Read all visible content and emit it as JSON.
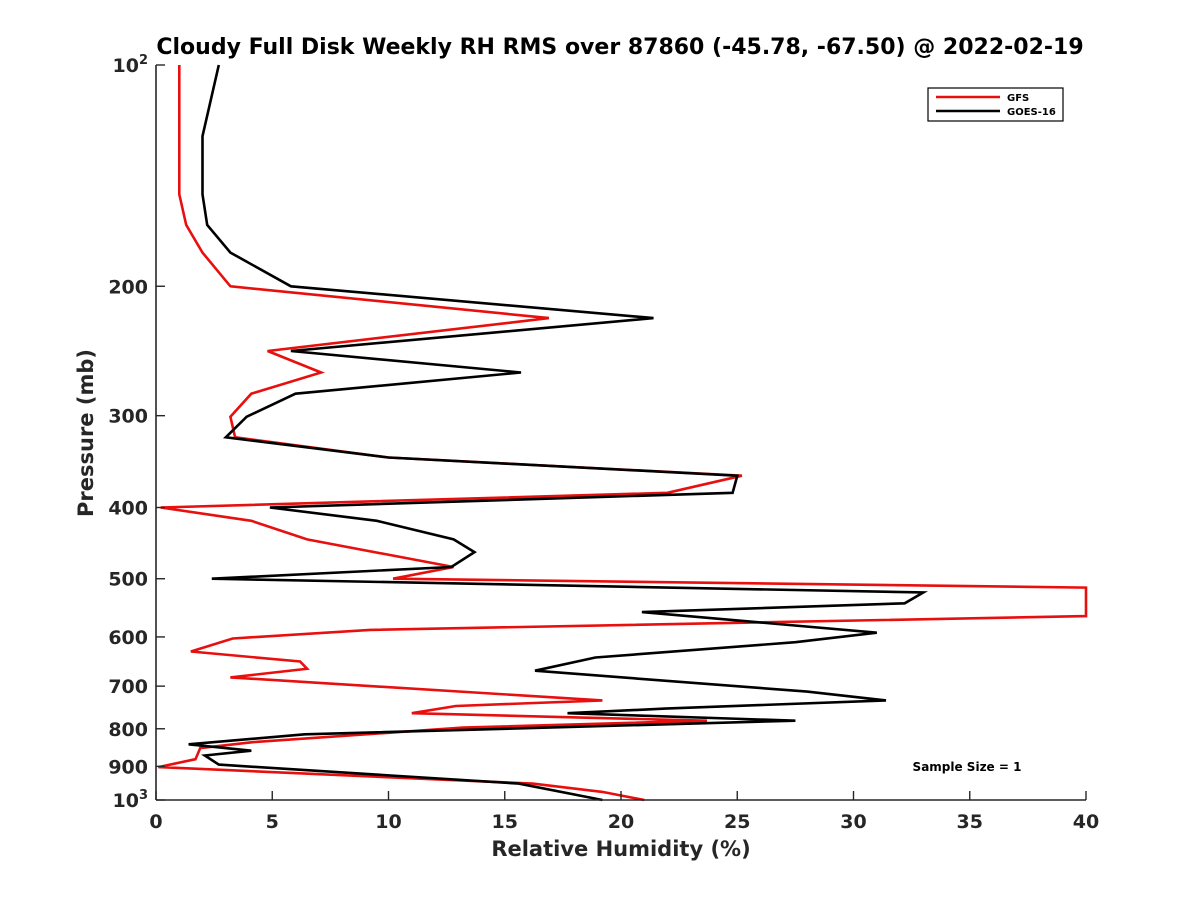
{
  "chart_data": {
    "type": "line",
    "title": "Cloudy Full Disk Weekly RH RMS over 87860 (-45.78, -67.50) @ 2022-02-19",
    "xlabel": "Relative Humidity (%)",
    "ylabel": "Pressure (mb)",
    "xlim": [
      0,
      40
    ],
    "ylim": [
      100,
      1000
    ],
    "y_scale": "log",
    "y_reversed": true,
    "x_ticks": [
      "0",
      "5",
      "10",
      "15",
      "20",
      "25",
      "30",
      "35",
      "40"
    ],
    "y_ticks": [
      {
        "value": 100,
        "base": "10",
        "exp": "2"
      },
      {
        "value": 200,
        "label": "200"
      },
      {
        "value": 300,
        "label": "300"
      },
      {
        "value": 400,
        "label": "400"
      },
      {
        "value": 500,
        "label": "500"
      },
      {
        "value": 600,
        "label": "600"
      },
      {
        "value": 700,
        "label": "700"
      },
      {
        "value": 800,
        "label": "800"
      },
      {
        "value": 900,
        "label": "900"
      },
      {
        "value": 1000,
        "base": "10",
        "exp": "3"
      }
    ],
    "legend_position": "top-right",
    "series": [
      {
        "name": "GFS",
        "color": "#e8100f",
        "points": [
          [
            1.0,
            100
          ],
          [
            1.0,
            125
          ],
          [
            1.0,
            150
          ],
          [
            1.3,
            165
          ],
          [
            2.0,
            180
          ],
          [
            3.2,
            200
          ],
          [
            16.9,
            221
          ],
          [
            4.8,
            245
          ],
          [
            7.1,
            262
          ],
          [
            4.1,
            280
          ],
          [
            3.2,
            301
          ],
          [
            3.4,
            321
          ],
          [
            10.0,
            342
          ],
          [
            25.2,
            362
          ],
          [
            22.0,
            382
          ],
          [
            0.2,
            400
          ],
          [
            4.1,
            417
          ],
          [
            6.5,
            442
          ],
          [
            12.8,
            482
          ],
          [
            10.2,
            500
          ],
          [
            40.0,
            514
          ],
          [
            40.0,
            562
          ],
          [
            9.2,
            587
          ],
          [
            3.3,
            603
          ],
          [
            1.5,
            628
          ],
          [
            6.2,
            648
          ],
          [
            6.5,
            663
          ],
          [
            3.2,
            681
          ],
          [
            19.2,
            732
          ],
          [
            12.9,
            745
          ],
          [
            11.0,
            762
          ],
          [
            23.7,
            780
          ],
          [
            13.2,
            797
          ],
          [
            4.2,
            834
          ],
          [
            1.9,
            850
          ],
          [
            1.7,
            880
          ],
          [
            0.1,
            902
          ],
          [
            16.2,
            950
          ],
          [
            19.2,
            975
          ],
          [
            21.0,
            1000
          ]
        ]
      },
      {
        "name": "GOES-16",
        "color": "#000000",
        "points": [
          [
            2.7,
            100
          ],
          [
            2.0,
            125
          ],
          [
            2.0,
            150
          ],
          [
            2.2,
            165
          ],
          [
            3.2,
            180
          ],
          [
            5.8,
            200
          ],
          [
            21.4,
            221
          ],
          [
            5.8,
            245
          ],
          [
            15.7,
            262
          ],
          [
            6.0,
            280
          ],
          [
            3.9,
            301
          ],
          [
            3.0,
            321
          ],
          [
            10.0,
            342
          ],
          [
            25.0,
            362
          ],
          [
            24.8,
            382
          ],
          [
            4.9,
            400
          ],
          [
            9.5,
            417
          ],
          [
            12.8,
            442
          ],
          [
            13.7,
            460
          ],
          [
            12.7,
            482
          ],
          [
            2.4,
            500
          ],
          [
            33.0,
            522
          ],
          [
            32.2,
            540
          ],
          [
            20.9,
            555
          ],
          [
            31.0,
            592
          ],
          [
            27.5,
            610
          ],
          [
            18.9,
            640
          ],
          [
            16.3,
            667
          ],
          [
            28.0,
            712
          ],
          [
            31.4,
            732
          ],
          [
            21.9,
            751
          ],
          [
            17.7,
            762
          ],
          [
            27.5,
            780
          ],
          [
            6.4,
            814
          ],
          [
            1.4,
            840
          ],
          [
            4.1,
            857
          ],
          [
            2.1,
            870
          ],
          [
            2.7,
            895
          ],
          [
            15.6,
            950
          ],
          [
            19.2,
            1000
          ]
        ]
      }
    ],
    "annotation": "Sample Size = 1"
  }
}
